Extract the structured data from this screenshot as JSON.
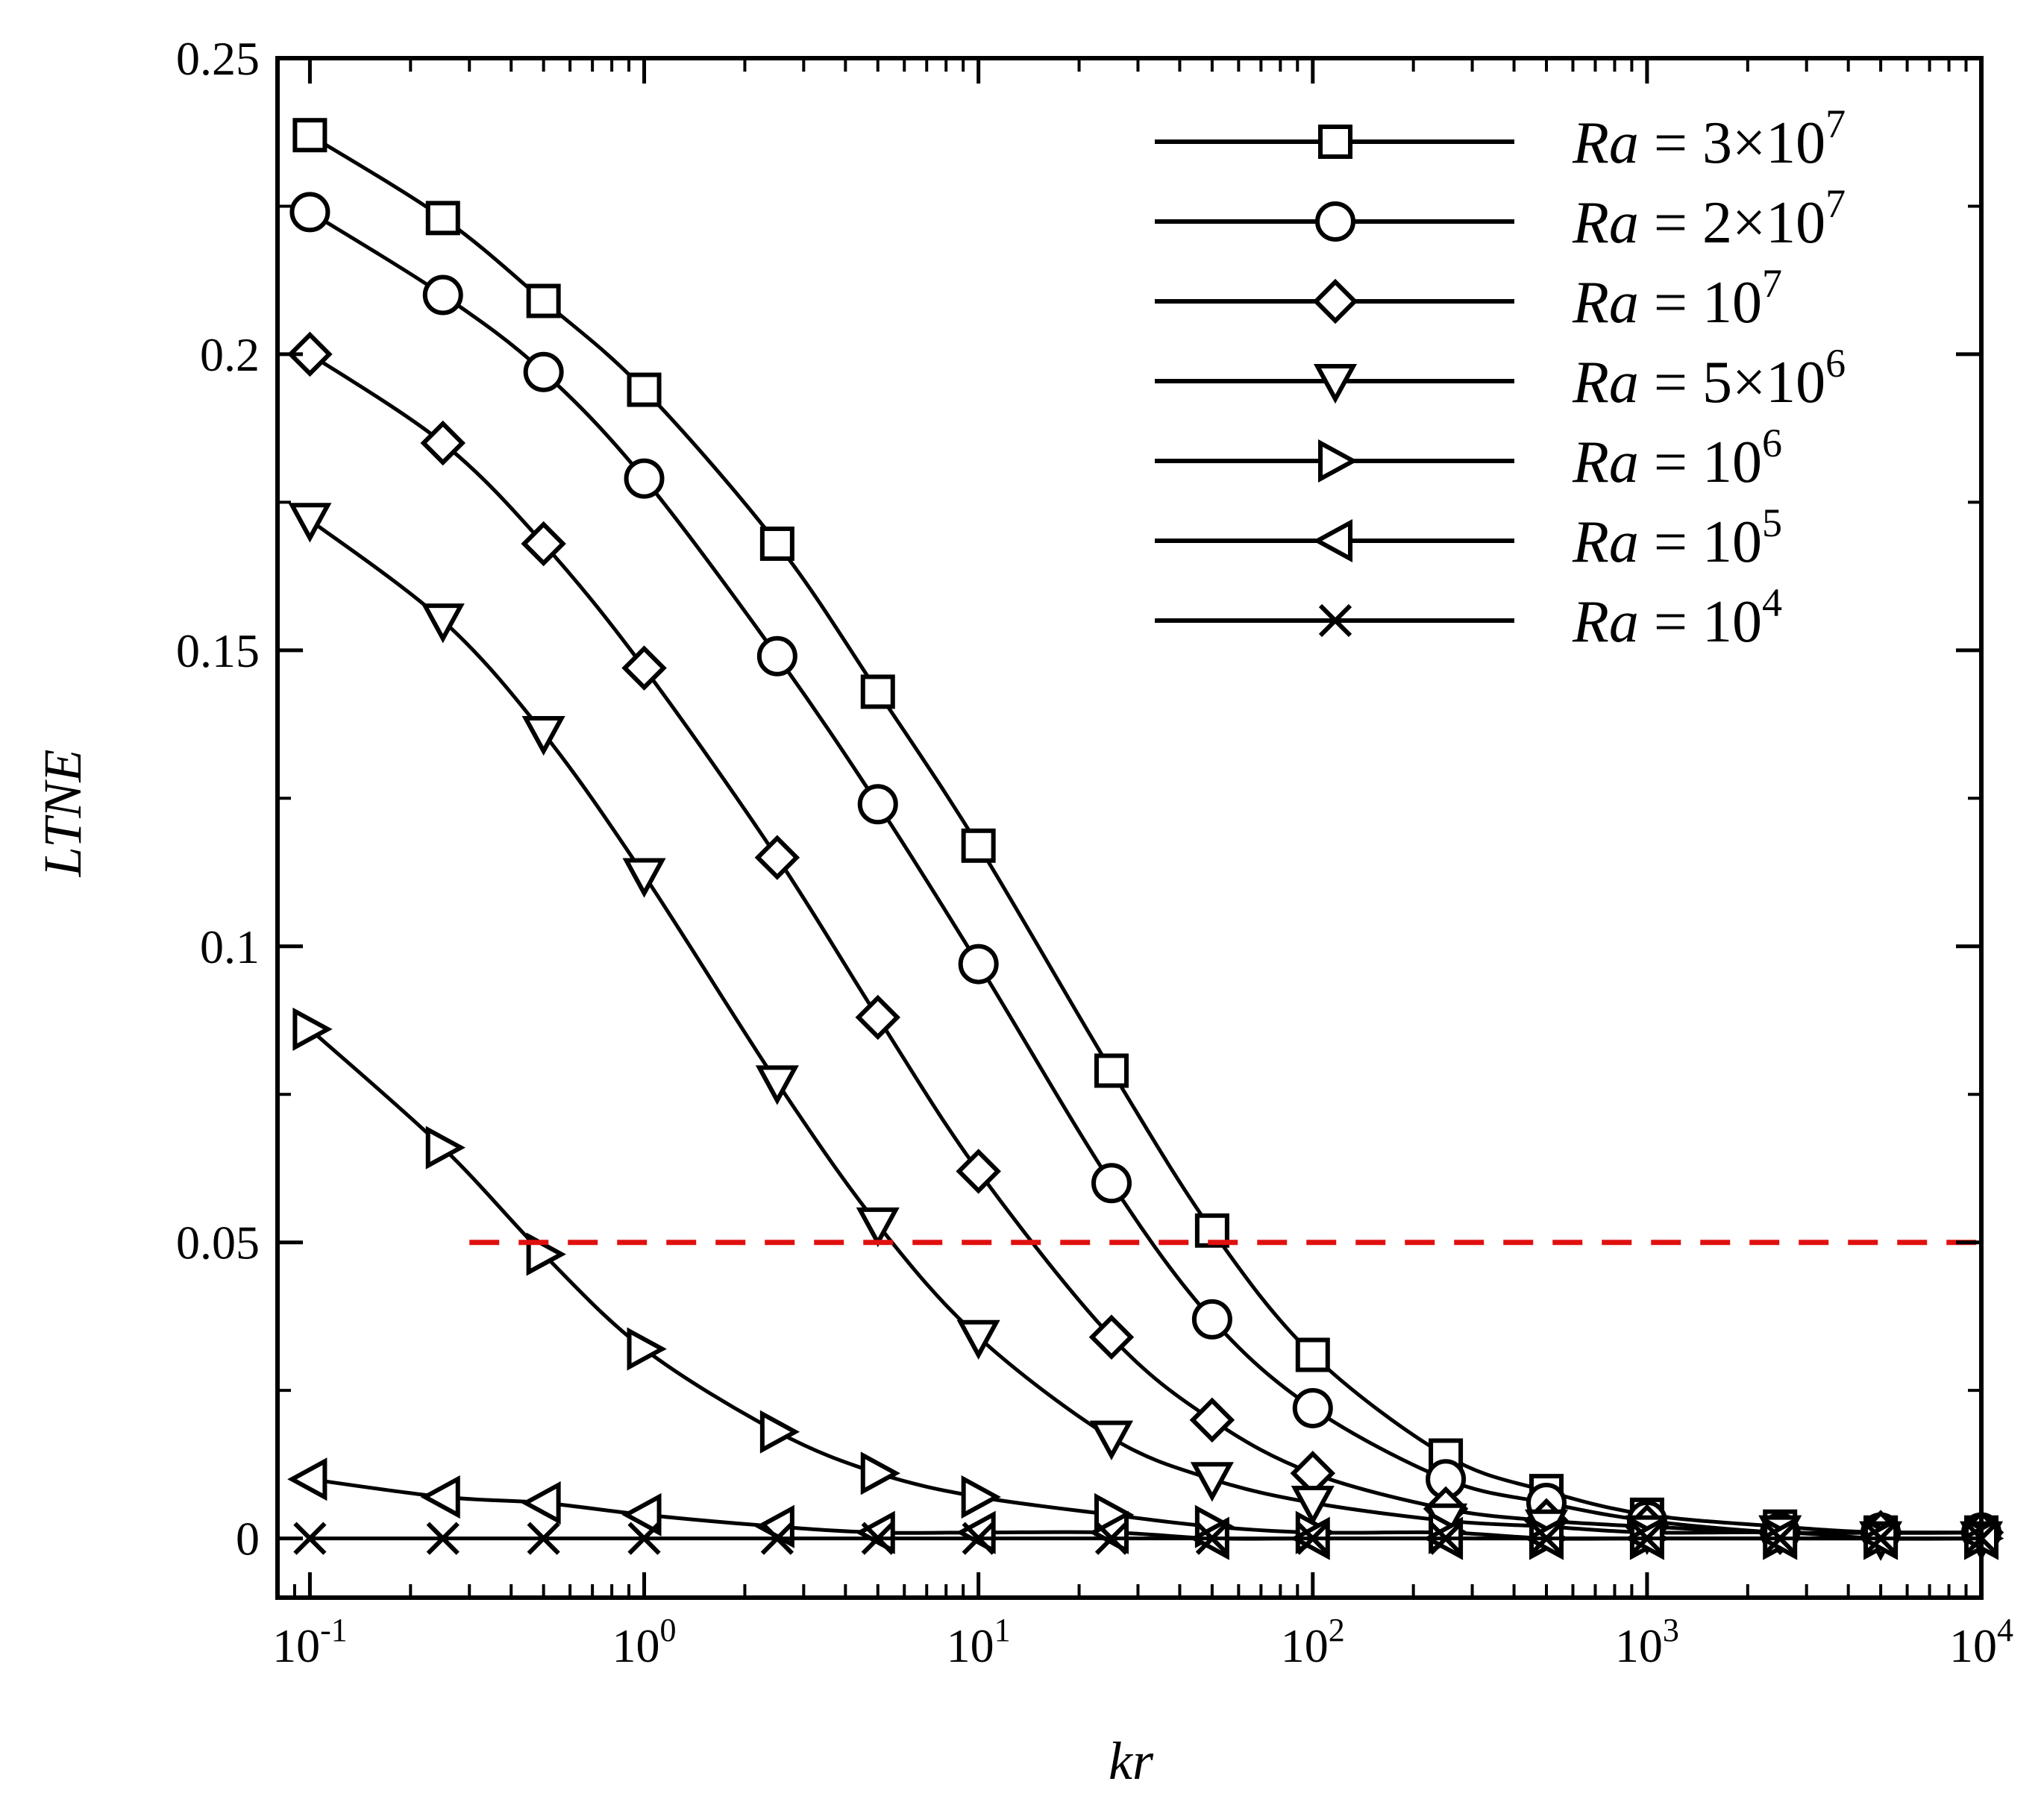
{
  "chart_data": {
    "type": "line",
    "title": "",
    "xlabel": "kr",
    "ylabel": "LTNE",
    "xscale": "log",
    "xlim": [
      0.08,
      10000
    ],
    "ylim": [
      -0.01,
      0.25
    ],
    "x_ticks": [
      {
        "value": 0.1,
        "base": "10",
        "exp": "-1"
      },
      {
        "value": 1,
        "base": "10",
        "exp": "0"
      },
      {
        "value": 10,
        "base": "10",
        "exp": "1"
      },
      {
        "value": 100,
        "base": "10",
        "exp": "2"
      },
      {
        "value": 1000,
        "base": "10",
        "exp": "3"
      },
      {
        "value": 10000,
        "base": "10",
        "exp": "4"
      }
    ],
    "y_ticks": [
      {
        "value": 0,
        "label": "0"
      },
      {
        "value": 0.05,
        "label": "0.05"
      },
      {
        "value": 0.1,
        "label": "0.1"
      },
      {
        "value": 0.15,
        "label": "0.15"
      },
      {
        "value": 0.2,
        "label": "0.2"
      },
      {
        "value": 0.25,
        "label": "0.25"
      }
    ],
    "grid": false,
    "legend_position": "top-right",
    "x": [
      0.1,
      0.25,
      0.5,
      1,
      2.5,
      5,
      10,
      25,
      50,
      100,
      250,
      500,
      1000,
      2500,
      5000,
      10000
    ],
    "series": [
      {
        "name": "Ra = 3×10^7",
        "prefix": "Ra",
        "eq": " = ",
        "mant": "3×10",
        "exp": "7",
        "marker": "square",
        "values": [
          0.237,
          0.223,
          0.209,
          0.194,
          0.168,
          0.143,
          0.117,
          0.079,
          0.052,
          0.031,
          0.014,
          0.008,
          0.004,
          0.002,
          0.001,
          0.001
        ]
      },
      {
        "name": "Ra = 2×10^7",
        "prefix": "Ra",
        "eq": " = ",
        "mant": "2×10",
        "exp": "7",
        "marker": "circle",
        "values": [
          0.224,
          0.21,
          0.197,
          0.179,
          0.149,
          0.124,
          0.097,
          0.06,
          0.037,
          0.022,
          0.01,
          0.006,
          0.003,
          0.001,
          0.001,
          0.001
        ]
      },
      {
        "name": "Ra = 10^7",
        "prefix": "Ra",
        "eq": " = ",
        "mant": "10",
        "exp": "7",
        "marker": "diamond",
        "values": [
          0.2,
          0.185,
          0.168,
          0.147,
          0.115,
          0.088,
          0.062,
          0.034,
          0.02,
          0.011,
          0.005,
          0.003,
          0.002,
          0.001,
          0.001,
          0.001
        ]
      },
      {
        "name": "Ra = 5×10^6",
        "prefix": "Ra",
        "eq": " = ",
        "mant": "5×10",
        "exp": "6",
        "marker": "triangle-down",
        "values": [
          0.172,
          0.155,
          0.136,
          0.112,
          0.077,
          0.053,
          0.034,
          0.017,
          0.01,
          0.006,
          0.003,
          0.002,
          0.001,
          0.001,
          0.0,
          0.0
        ]
      },
      {
        "name": "Ra = 10^6",
        "prefix": "Ra",
        "eq": " = ",
        "mant": "10",
        "exp": "6",
        "marker": "triangle-right",
        "values": [
          0.086,
          0.066,
          0.048,
          0.032,
          0.018,
          0.011,
          0.007,
          0.004,
          0.002,
          0.001,
          0.001,
          0.0,
          0.0,
          0.0,
          0.0,
          0.0
        ]
      },
      {
        "name": "Ra = 10^5",
        "prefix": "Ra",
        "eq": " = ",
        "mant": "10",
        "exp": "5",
        "marker": "triangle-left",
        "values": [
          0.01,
          0.007,
          0.006,
          0.004,
          0.002,
          0.001,
          0.001,
          0.001,
          0.0,
          0.0,
          0.0,
          0.0,
          0.0,
          0.0,
          0.0,
          0.0
        ]
      },
      {
        "name": "Ra = 10^4",
        "prefix": "Ra",
        "eq": " = ",
        "mant": "10",
        "exp": "4",
        "marker": "x",
        "values": [
          0.0,
          0.0,
          0.0,
          0.0,
          0.0,
          0.0,
          0.0,
          0.0,
          0.0,
          0.0,
          0.0,
          0.0,
          0.0,
          0.0,
          0.0,
          0.0
        ]
      }
    ],
    "reference_line": {
      "y": 0.05,
      "color": "#e01010",
      "style": "dashed",
      "x_start": 0.3
    }
  }
}
